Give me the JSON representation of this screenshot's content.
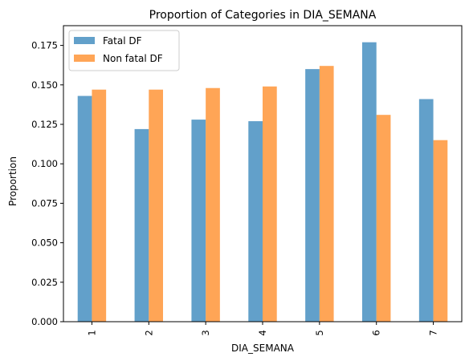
{
  "chart_data": {
    "type": "bar",
    "title": "Proportion of Categories in DIA_SEMANA",
    "xlabel": "DIA_SEMANA",
    "ylabel": "Proportion",
    "categories": [
      "1",
      "2",
      "3",
      "4",
      "5",
      "6",
      "7"
    ],
    "series": [
      {
        "name": "Fatal DF",
        "color": "#1f77b4",
        "values": [
          0.143,
          0.122,
          0.128,
          0.127,
          0.16,
          0.177,
          0.141
        ]
      },
      {
        "name": "Non fatal DF",
        "color": "#ff7f0e",
        "values": [
          0.147,
          0.147,
          0.148,
          0.149,
          0.162,
          0.131,
          0.115
        ]
      }
    ],
    "ylim": [
      0,
      0.1875
    ],
    "yticks": [
      "0.000",
      "0.025",
      "0.050",
      "0.075",
      "0.100",
      "0.125",
      "0.150",
      "0.175"
    ],
    "grid": false,
    "legend_position": "top-left",
    "bar_opacity": 0.7
  }
}
